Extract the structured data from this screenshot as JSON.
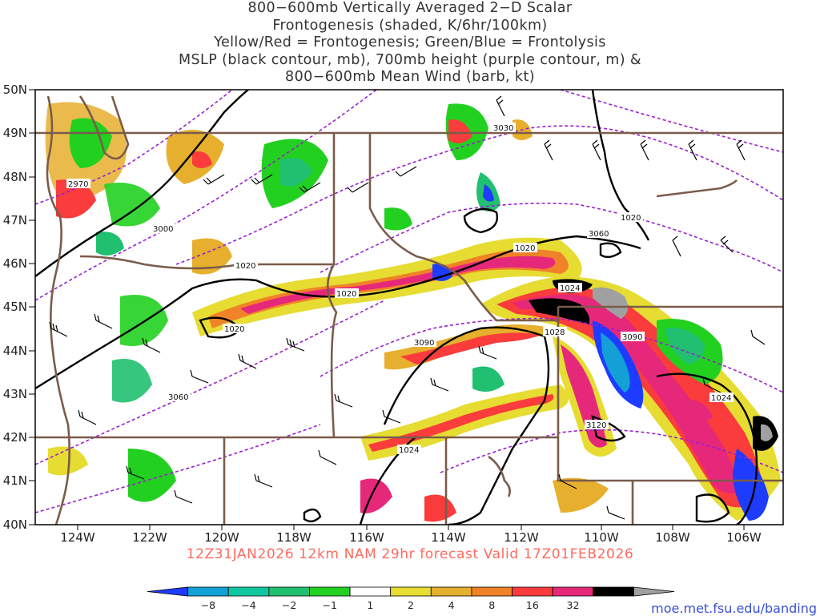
{
  "title": {
    "line1": "800−600mb Vertically Averaged 2−D Scalar",
    "line2": "Frontogenesis (shaded, K/6hr/100km)",
    "line3": "Yellow/Red = Frontogenesis;  Green/Blue = Frontolysis",
    "line4": "MSLP (black contour, mb), 700mb height (purple contour, m) &",
    "line5": "800−600mb Mean Wind (barb, kt)"
  },
  "lat_labels": [
    "50N",
    "49N",
    "48N",
    "47N",
    "46N",
    "45N",
    "44N",
    "43N",
    "42N",
    "41N",
    "40N"
  ],
  "lon_labels": [
    "124W",
    "122W",
    "120W",
    "118W",
    "116W",
    "114W",
    "112W",
    "110W",
    "108W",
    "106W"
  ],
  "contour_labels": {
    "height": [
      "3030",
      "2970",
      "3000",
      "3060",
      "3060",
      "3090",
      "3090",
      "3120"
    ],
    "mslp": [
      "1020",
      "1020",
      "1020",
      "1020",
      "1024",
      "1028",
      "1024",
      "1024",
      "1020"
    ]
  },
  "valid_time": "12Z31JAN2026 12km NAM 29hr forecast Valid 17Z01FEB2026",
  "colorbar": {
    "ticks": [
      "−8",
      "−4",
      "−2",
      "−1",
      "1",
      "2",
      "4",
      "8",
      "16",
      "32"
    ],
    "colors": [
      "#1e3cff",
      "#12a0d7",
      "#10c8a0",
      "#20c070",
      "#22d020",
      "#ffffff",
      "#e6dc32",
      "#e6af2d",
      "#f08228",
      "#fa3c3c",
      "#e6287a",
      "#000000",
      "#a0a0a0"
    ]
  },
  "url": "moe.met.fsu.edu/banding",
  "colors": {
    "state_border": "#7a5c4a",
    "mslp_contour": "#000000",
    "height_contour": "#9a1fd0",
    "valid_text": "#ff6a5e"
  }
}
